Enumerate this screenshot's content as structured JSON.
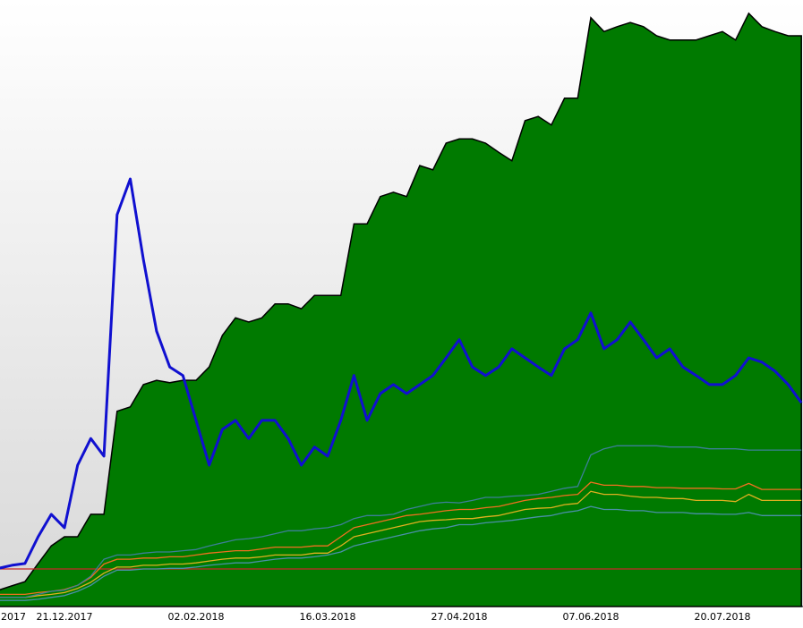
{
  "chart_data": {
    "type": "line",
    "categories": [
      null,
      ".2017",
      null,
      null,
      null,
      "21.12.2017",
      null,
      null,
      null,
      null,
      null,
      null,
      null,
      null,
      null,
      "02.02.2018",
      null,
      null,
      null,
      null,
      null,
      null,
      null,
      null,
      null,
      "16.03.2018",
      null,
      null,
      null,
      null,
      null,
      null,
      null,
      null,
      null,
      "27.04.2018",
      null,
      null,
      null,
      null,
      null,
      null,
      null,
      null,
      null,
      "07.06.2018",
      null,
      null,
      null,
      null,
      null,
      null,
      null,
      null,
      null,
      "20.07.2018",
      null,
      null,
      null,
      null,
      null,
      null
    ],
    "ylim": [
      0,
      100
    ],
    "series": [
      {
        "area": true,
        "color": "#007a00",
        "values": [
          2.7,
          3.4,
          4.1,
          7.1,
          10.0,
          11.5,
          11.5,
          15.2,
          15.2,
          32.2,
          32.9,
          36.6,
          37.3,
          36.9,
          37.3,
          37.3,
          39.5,
          44.7,
          47.6,
          46.9,
          47.6,
          49.9,
          49.9,
          49.1,
          51.3,
          51.3,
          51.3,
          63.1,
          63.1,
          67.6,
          68.3,
          67.6,
          72.7,
          72.0,
          76.4,
          77.1,
          77.1,
          76.4,
          74.9,
          73.5,
          80.1,
          80.8,
          79.4,
          83.8,
          83.8,
          97.1,
          94.8,
          95.6,
          96.3,
          95.6,
          94.1,
          93.4,
          93.4,
          93.4,
          94.1,
          94.8,
          93.4,
          97.8,
          95.6,
          94.8,
          94.1,
          94.1
        ]
      },
      {
        "color": "#c62828",
        "values": [
          6.2,
          6.2,
          6.2,
          6.2,
          6.2,
          6.2,
          6.2,
          6.2,
          6.2,
          6.2,
          6.2,
          6.2,
          6.2,
          6.2,
          6.2,
          6.2,
          6.2,
          6.2,
          6.2,
          6.2,
          6.2,
          6.2,
          6.2,
          6.2,
          6.2,
          6.2,
          6.2,
          6.2,
          6.2,
          6.2,
          6.2,
          6.2,
          6.2,
          6.2,
          6.2,
          6.2,
          6.2,
          6.2,
          6.2,
          6.2,
          6.2,
          6.2,
          6.2,
          6.2,
          6.2,
          6.2,
          6.2,
          6.2,
          6.2,
          6.2,
          6.2,
          6.2,
          6.2,
          6.2,
          6.2,
          6.2,
          6.2,
          6.2,
          6.2,
          6.2,
          6.2,
          6.2
        ]
      },
      {
        "color": "#4a90a8",
        "values": [
          1.0,
          1.0,
          1.0,
          1.2,
          1.5,
          1.8,
          2.5,
          3.5,
          5.0,
          6.0,
          6.0,
          6.2,
          6.2,
          6.3,
          6.3,
          6.5,
          6.8,
          7.0,
          7.2,
          7.2,
          7.5,
          7.8,
          8.0,
          8.0,
          8.2,
          8.5,
          9.0,
          10.0,
          10.5,
          11.0,
          11.5,
          12.0,
          12.5,
          12.8,
          13.0,
          13.5,
          13.5,
          13.8,
          14.0,
          14.2,
          14.5,
          14.8,
          15.0,
          15.5,
          15.8,
          16.5,
          16.0,
          16.0,
          15.8,
          15.8,
          15.5,
          15.5,
          15.5,
          15.3,
          15.3,
          15.2,
          15.2,
          15.5,
          15.0,
          15.0,
          15.0,
          15.0
        ]
      },
      {
        "color": "#e0b020",
        "values": [
          1.5,
          1.5,
          1.5,
          1.8,
          2.0,
          2.3,
          3.0,
          4.0,
          5.5,
          6.5,
          6.5,
          6.8,
          6.8,
          7.0,
          7.0,
          7.2,
          7.5,
          7.8,
          8.0,
          8.0,
          8.2,
          8.5,
          8.5,
          8.5,
          8.8,
          8.8,
          10.0,
          11.5,
          12.0,
          12.5,
          13.0,
          13.5,
          14.0,
          14.2,
          14.3,
          14.5,
          14.5,
          14.8,
          15.0,
          15.5,
          16.0,
          16.2,
          16.3,
          16.8,
          17.0,
          19.0,
          18.5,
          18.5,
          18.2,
          18.0,
          18.0,
          17.8,
          17.8,
          17.5,
          17.5,
          17.5,
          17.3,
          18.5,
          17.5,
          17.5,
          17.5,
          17.5
        ]
      },
      {
        "color": "#f07020",
        "values": [
          2.0,
          2.0,
          2.0,
          2.3,
          2.5,
          2.8,
          3.5,
          4.8,
          7.0,
          7.8,
          7.8,
          8.0,
          8.0,
          8.2,
          8.2,
          8.5,
          8.8,
          9.0,
          9.2,
          9.2,
          9.5,
          9.8,
          9.8,
          9.8,
          10.0,
          10.0,
          11.5,
          13.0,
          13.5,
          14.0,
          14.5,
          15.0,
          15.2,
          15.5,
          15.8,
          16.0,
          16.0,
          16.3,
          16.5,
          17.0,
          17.5,
          17.8,
          18.0,
          18.3,
          18.5,
          20.5,
          20.0,
          20.0,
          19.8,
          19.8,
          19.6,
          19.6,
          19.5,
          19.5,
          19.5,
          19.4,
          19.4,
          20.3,
          19.3,
          19.3,
          19.3,
          19.3
        ]
      },
      {
        "color": "#3d7f98",
        "values": [
          1.5,
          1.5,
          1.5,
          2.0,
          2.5,
          2.7,
          3.5,
          5.0,
          7.8,
          8.5,
          8.5,
          8.8,
          9.0,
          9.0,
          9.2,
          9.4,
          10.0,
          10.5,
          11.0,
          11.2,
          11.5,
          12.0,
          12.5,
          12.5,
          12.8,
          13.0,
          13.5,
          14.5,
          15.0,
          15.0,
          15.2,
          16.0,
          16.5,
          17.0,
          17.2,
          17.1,
          17.5,
          18.0,
          18.0,
          18.2,
          18.3,
          18.5,
          19.0,
          19.5,
          19.8,
          25.0,
          26.0,
          26.5,
          26.5,
          26.5,
          26.5,
          26.3,
          26.3,
          26.3,
          26.0,
          26.0,
          26.0,
          25.8,
          25.8,
          25.8,
          25.8,
          25.8
        ]
      },
      {
        "color": "#1010d0",
        "values": [
          6.3,
          6.8,
          7.1,
          11.5,
          15.2,
          13.0,
          23.3,
          27.7,
          24.8,
          64.6,
          70.5,
          57.2,
          45.4,
          39.5,
          38.1,
          30.7,
          23.3,
          29.2,
          30.7,
          27.7,
          30.7,
          30.7,
          27.7,
          23.3,
          26.3,
          24.8,
          30.7,
          38.1,
          30.7,
          35.1,
          36.6,
          35.1,
          36.6,
          38.1,
          41.0,
          44.0,
          39.5,
          38.1,
          39.5,
          42.5,
          41.0,
          39.5,
          38.1,
          42.5,
          44.0,
          48.4,
          42.5,
          44.0,
          46.9,
          44.0,
          41.0,
          42.5,
          39.5,
          38.1,
          36.6,
          36.6,
          38.1,
          41.0,
          40.3,
          38.8,
          36.6,
          33.6
        ]
      }
    ]
  }
}
